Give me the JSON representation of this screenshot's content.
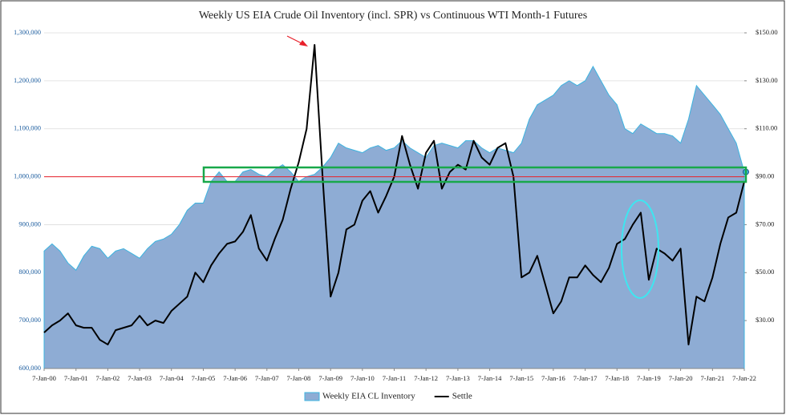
{
  "chart_data": {
    "type": "area-line",
    "title": "Weekly US EIA Crude Oil Inventory (incl. SPR) vs Continuous WTI Month-1 Futures",
    "x": [
      "2000-01-07",
      "2000-04-07",
      "2000-07-07",
      "2000-10-07",
      "2001-01-07",
      "2001-04-07",
      "2001-07-07",
      "2001-10-07",
      "2002-01-07",
      "2002-04-07",
      "2002-07-07",
      "2002-10-07",
      "2003-01-07",
      "2003-04-07",
      "2003-07-07",
      "2003-10-07",
      "2004-01-07",
      "2004-04-07",
      "2004-07-07",
      "2004-10-07",
      "2005-01-07",
      "2005-04-07",
      "2005-07-07",
      "2005-10-07",
      "2006-01-07",
      "2006-04-07",
      "2006-07-07",
      "2006-10-07",
      "2007-01-07",
      "2007-04-07",
      "2007-07-07",
      "2007-10-07",
      "2008-01-07",
      "2008-04-07",
      "2008-07-07",
      "2008-10-07",
      "2009-01-07",
      "2009-04-07",
      "2009-07-07",
      "2009-10-07",
      "2010-01-07",
      "2010-04-07",
      "2010-07-07",
      "2010-10-07",
      "2011-01-07",
      "2011-04-07",
      "2011-07-07",
      "2011-10-07",
      "2012-01-07",
      "2012-04-07",
      "2012-07-07",
      "2012-10-07",
      "2013-01-07",
      "2013-04-07",
      "2013-07-07",
      "2013-10-07",
      "2014-01-07",
      "2014-04-07",
      "2014-07-07",
      "2014-10-07",
      "2015-01-07",
      "2015-04-07",
      "2015-07-07",
      "2015-10-07",
      "2016-01-07",
      "2016-04-07",
      "2016-07-07",
      "2016-10-07",
      "2017-01-07",
      "2017-04-07",
      "2017-07-07",
      "2017-10-07",
      "2018-01-07",
      "2018-04-07",
      "2018-07-07",
      "2018-10-07",
      "2019-01-07",
      "2019-04-07",
      "2019-07-07",
      "2019-10-07",
      "2020-01-07",
      "2020-04-07",
      "2020-07-07",
      "2020-10-07",
      "2021-01-07",
      "2021-04-07",
      "2021-07-07",
      "2021-10-07",
      "2022-01-07"
    ],
    "series": [
      {
        "name": "Weekly EIA CL Inventory",
        "kind": "area",
        "color": "#8eacd4",
        "outline": "#3cb4e0",
        "axis": "y",
        "values": [
          845000,
          860000,
          845000,
          820000,
          805000,
          835000,
          855000,
          850000,
          830000,
          845000,
          850000,
          840000,
          830000,
          850000,
          865000,
          870000,
          880000,
          900000,
          930000,
          945000,
          945000,
          990000,
          1010000,
          990000,
          990000,
          1010000,
          1015000,
          1005000,
          1000000,
          1015000,
          1025000,
          1010000,
          990000,
          1000000,
          1005000,
          1020000,
          1040000,
          1070000,
          1060000,
          1055000,
          1050000,
          1060000,
          1065000,
          1055000,
          1060000,
          1075000,
          1060000,
          1050000,
          1040000,
          1065000,
          1070000,
          1065000,
          1060000,
          1075000,
          1075000,
          1060000,
          1050000,
          1060000,
          1055000,
          1050000,
          1070000,
          1120000,
          1150000,
          1160000,
          1170000,
          1190000,
          1200000,
          1190000,
          1200000,
          1230000,
          1200000,
          1170000,
          1150000,
          1100000,
          1090000,
          1110000,
          1100000,
          1090000,
          1090000,
          1085000,
          1070000,
          1120000,
          1190000,
          1170000,
          1150000,
          1130000,
          1100000,
          1070000,
          1010000
        ]
      },
      {
        "name": "Settle",
        "kind": "line",
        "color": "#000000",
        "axis": "y2",
        "values": [
          25,
          28,
          30,
          33,
          28,
          27,
          27,
          22,
          20,
          26,
          27,
          28,
          32,
          28,
          30,
          29,
          34,
          37,
          40,
          50,
          46,
          53,
          58,
          62,
          63,
          67,
          74,
          60,
          55,
          64,
          72,
          85,
          96,
          110,
          145,
          90,
          40,
          50,
          68,
          70,
          80,
          84,
          75,
          82,
          90,
          107,
          95,
          85,
          100,
          105,
          85,
          92,
          95,
          93,
          105,
          98,
          95,
          102,
          104,
          90,
          48,
          50,
          57,
          45,
          33,
          38,
          48,
          48,
          53,
          49,
          46,
          52,
          62,
          64,
          70,
          75,
          47,
          60,
          58,
          55,
          60,
          20,
          40,
          38,
          48,
          62,
          73,
          75,
          88
        ]
      }
    ],
    "xlim": [
      "2000-01-07",
      "2022-01-07"
    ],
    "xticks": [
      {
        "value": "2000-01-07",
        "label": "7-Jan-00"
      },
      {
        "value": "2001-01-07",
        "label": "7-Jan-01"
      },
      {
        "value": "2002-01-07",
        "label": "7-Jan-02"
      },
      {
        "value": "2003-01-07",
        "label": "7-Jan-03"
      },
      {
        "value": "2004-01-07",
        "label": "7-Jan-04"
      },
      {
        "value": "2005-01-07",
        "label": "7-Jan-05"
      },
      {
        "value": "2006-01-07",
        "label": "7-Jan-06"
      },
      {
        "value": "2007-01-07",
        "label": "7-Jan-07"
      },
      {
        "value": "2008-01-07",
        "label": "7-Jan-08"
      },
      {
        "value": "2009-01-07",
        "label": "7-Jan-09"
      },
      {
        "value": "2010-01-07",
        "label": "7-Jan-10"
      },
      {
        "value": "2011-01-07",
        "label": "7-Jan-11"
      },
      {
        "value": "2012-01-07",
        "label": "7-Jan-12"
      },
      {
        "value": "2013-01-07",
        "label": "7-Jan-13"
      },
      {
        "value": "2014-01-07",
        "label": "7-Jan-14"
      },
      {
        "value": "2015-01-07",
        "label": "7-Jan-15"
      },
      {
        "value": "2016-01-07",
        "label": "7-Jan-16"
      },
      {
        "value": "2017-01-07",
        "label": "7-Jan-17"
      },
      {
        "value": "2018-01-07",
        "label": "7-Jan-18"
      },
      {
        "value": "2019-01-07",
        "label": "7-Jan-19"
      },
      {
        "value": "2020-01-07",
        "label": "7-Jan-20"
      },
      {
        "value": "2021-01-07",
        "label": "7-Jan-21"
      },
      {
        "value": "2022-01-07",
        "label": "7-Jan-22"
      }
    ],
    "ylim": [
      600000,
      1300000
    ],
    "yticks": [
      {
        "value": 600000,
        "label": "600,000"
      },
      {
        "value": 700000,
        "label": "700,000"
      },
      {
        "value": 800000,
        "label": "800,000"
      },
      {
        "value": 900000,
        "label": "900,000"
      },
      {
        "value": 1000000,
        "label": "1,000,000"
      },
      {
        "value": 1100000,
        "label": "1,100,000"
      },
      {
        "value": 1200000,
        "label": "1,200,000"
      },
      {
        "value": 1300000,
        "label": "1,300,000"
      }
    ],
    "y2lim": [
      10,
      150
    ],
    "y2ticks": [
      {
        "value": 30,
        "label": "$30.00"
      },
      {
        "value": 50,
        "label": "$50.00"
      },
      {
        "value": 70,
        "label": "$70.00"
      },
      {
        "value": 90,
        "label": "$90.00"
      },
      {
        "value": 110,
        "label": "$110.00"
      },
      {
        "value": 130,
        "label": "$130.00"
      },
      {
        "value": 150,
        "label": "$150.00"
      }
    ],
    "grid": true,
    "reference_line": {
      "value": 1000000,
      "color": "#e8202a"
    },
    "legend": "bottom"
  }
}
